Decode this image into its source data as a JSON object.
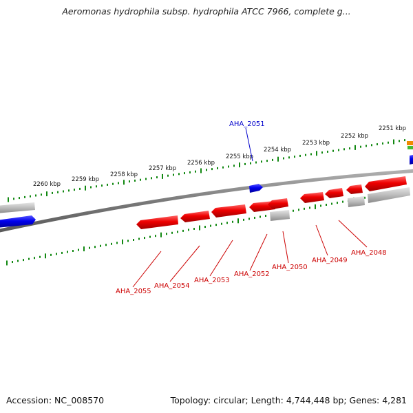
{
  "title": "Aeromonas hydrophila subsp. hydrophila ATCC 7966, complete g...",
  "accession": "Accession: NC_008570",
  "topology": "Topology: circular; Length: 4,744,448 bp; Genes: 4,281",
  "kbp_labels": [
    "2260 kbp",
    "2259 kbp",
    "2258 kbp",
    "2257 kbp",
    "2256 kbp",
    "2255 kbp",
    "2254 kbp",
    "2253 kbp",
    "2252 kbp",
    "2251 kbp"
  ],
  "gene_labels": [
    "AHA_2051",
    "AHA_2055",
    "AHA_2054",
    "AHA_2053",
    "AHA_2052",
    "AHA_2050",
    "AHA_2049",
    "AHA_2048"
  ],
  "colors": {
    "forward_gene": "#0000ee",
    "reverse_gene": "#ee0000",
    "other_feature": "#bbbbbb",
    "backbone": "#808080",
    "ticks": "#118811"
  }
}
